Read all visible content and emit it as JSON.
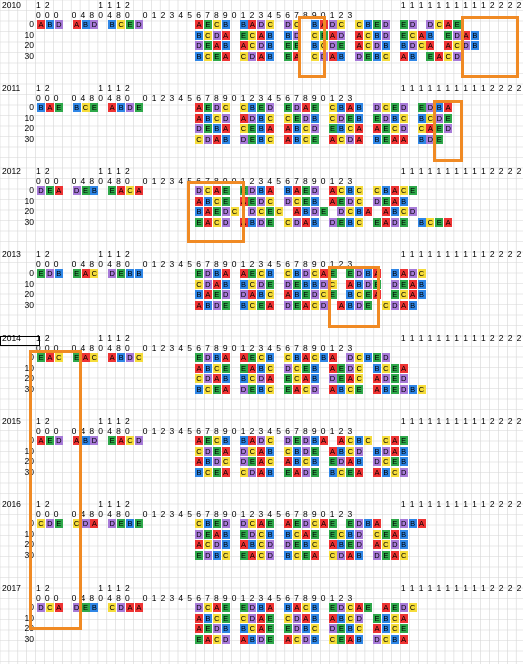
{
  "colors": {
    "A": "#ee3333",
    "B": "#2f86e6",
    "C": "#f5dc3a",
    "D": "#a77ad8",
    "E": "#2ea84a",
    "highlight": "#f08a24",
    "grid": "#d6d6d6"
  },
  "header": {
    "tens": [
      "1",
      "2",
      "",
      "",
      "",
      "",
      "",
      "1",
      "1",
      "1",
      "2",
      "",
      "",
      "",
      "",
      "",
      "",
      "",
      "",
      "",
      "",
      "",
      "",
      "",
      "",
      "",
      "",
      "",
      "",
      "",
      "",
      "",
      "",
      "",
      "",
      "",
      "",
      "",
      "",
      "",
      "",
      "1",
      "1",
      "1",
      "1",
      "1",
      "1",
      "1",
      "1",
      "1",
      "1",
      "2",
      "2",
      "2",
      "2"
    ],
    "ones": [
      "0",
      "0",
      "0",
      "",
      "0",
      "4",
      "8",
      "0",
      "4",
      "8",
      "0",
      "",
      "0",
      "1",
      "2",
      "3",
      "4",
      "5",
      "6",
      "7",
      "8",
      "9",
      "0",
      "1",
      "2",
      "3",
      "4",
      "5",
      "6",
      "7",
      "8",
      "9",
      "0",
      "1",
      "2",
      "3"
    ]
  },
  "blocks": [
    {
      "year": "2010",
      "rows": [
        {
          "label": "0",
          "left": "ABD ABD BCED",
          "right": "AECB BADC DC BADC CBED ED DCAE"
        },
        {
          "label": "10",
          "left": "",
          "right": "BCDA ECAB BD CEAD ACBD ECAB EDAB"
        },
        {
          "label": "20",
          "left": "",
          "right": "DEAB ACDB EE BCDE ACDB BDCA ACDB"
        },
        {
          "label": "30",
          "left": "",
          "right": "BCEA CDAB EA CDAB DEBC AB EACD"
        }
      ]
    },
    {
      "year": "2011",
      "rows": [
        {
          "label": "0",
          "left": "BAE BCE ABDE",
          "right": "AEDC CBED EDAE CBAB DCED EDBA"
        },
        {
          "label": "10",
          "left": "",
          "right": "ABCD ADBC CEDB CDEB EDBC BCDE"
        },
        {
          "label": "20",
          "left": "",
          "right": "DEBA CEBA ABCD EBCA AECD CAED"
        },
        {
          "label": "30",
          "left": "",
          "right": "CDAB DEBC ABCE ACDA BEAA BDE"
        }
      ]
    },
    {
      "year": "2012",
      "rows": [
        {
          "label": "0",
          "left": "DEA DEB EACA",
          "right": "DCAE EDBA BAED ACBC CBACE"
        },
        {
          "label": "10",
          "left": "",
          "right": "ABCE AEDC DCEB AEDC DEAB"
        },
        {
          "label": "20",
          "left": "",
          "right": "BAEDC DCEC ABDE DCBA ABCD"
        },
        {
          "label": "30",
          "left": "",
          "right": "EACD ABDE CDAB DEBC EADE BCEA"
        }
      ]
    },
    {
      "year": "2013",
      "rows": [
        {
          "label": "0",
          "left": "EDB EAC DEBB",
          "right": "EDBA AECB CBDCAE EDBA BADC"
        },
        {
          "label": "10",
          "left": "",
          "right": "CDAB BCDE DEBBDC ABDE DEAB"
        },
        {
          "label": "20",
          "left": "",
          "right": "BAED DABC ABEDCE BCEA ECAB"
        },
        {
          "label": "30",
          "left": "",
          "right": "ABDE BCEA DEACD ABDE CDAB"
        }
      ]
    },
    {
      "year": "2014",
      "rows": [
        {
          "label": "0",
          "left": "EAC EAC ABDC",
          "right": "EDBA AECB CBACBA DCBED"
        },
        {
          "label": "10",
          "left": "",
          "right": "ABCE EABC DCEB AEDC BCEA"
        },
        {
          "label": "20",
          "left": "",
          "right": "CDAB BCDA ECAB DEAC ADED"
        },
        {
          "label": "30",
          "left": "",
          "right": "BCEA DEBC EACD ABCE ABEDBC"
        }
      ]
    },
    {
      "year": "2015",
      "rows": [
        {
          "label": "0",
          "left": "AED ABD EACD",
          "right": "AECB BADC DEDBA ACBC CAE"
        },
        {
          "label": "10",
          "left": "",
          "right": "CDEA DCAB CBDE ABCD BDAB"
        },
        {
          "label": "20",
          "left": "",
          "right": "ABDC DEAC ABCB EDAB DCEB"
        },
        {
          "label": "30",
          "left": "",
          "right": "BCEA CDAB EADE BCEA ABCD"
        }
      ]
    },
    {
      "year": "2016",
      "rows": [
        {
          "label": "0",
          "left": "CDE CDA DEBE",
          "right": "CBED DCAE AEDCAE EDBA EDBA"
        },
        {
          "label": "10",
          "left": "",
          "right": "DEAB EDCB BCAE ECBD CEAB"
        },
        {
          "label": "20",
          "left": "",
          "right": "ACDB ABCD DEBC ABED ACDB"
        },
        {
          "label": "30",
          "left": "",
          "right": "EDBC EACD BCEA CDAB DEAC"
        }
      ]
    },
    {
      "year": "2017",
      "rows": [
        {
          "label": "0",
          "left": "DCA DEB CDAA",
          "right": "DCAE EDBA BACB EDCAE AEDC"
        },
        {
          "label": "10",
          "left": "",
          "right": "ABCE CDAE CDAB ABCD EBCA"
        },
        {
          "label": "20",
          "left": "",
          "right": "AEDB BCAE EDBC DEBC ABCE"
        },
        {
          "label": "30",
          "left": "",
          "right": "EACD ABDE ACDB CEAB DCBA"
        }
      ]
    }
  ]
}
